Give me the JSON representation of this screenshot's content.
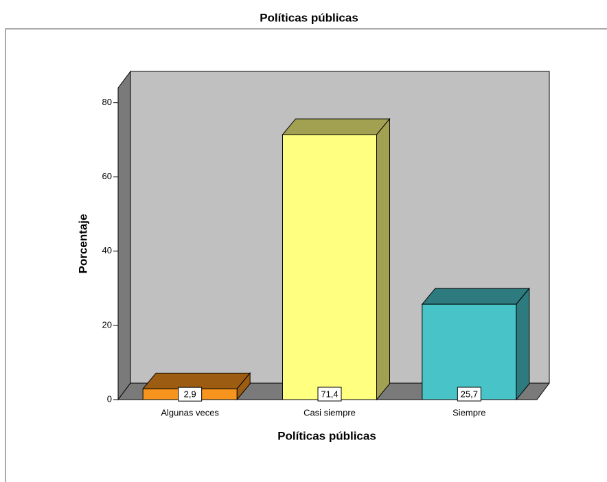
{
  "chart_data": {
    "type": "bar3d",
    "title": "Políticas públicas",
    "x_label": "Políticas públicas",
    "y_label": "Porcentaje",
    "categories": [
      "Algunas veces",
      "Casi siempre",
      "Siempre"
    ],
    "values": [
      2.9,
      71.4,
      25.7
    ],
    "value_labels": [
      "2,9",
      "71,4",
      "25,7"
    ],
    "colors": [
      "#f7941d",
      "#ffff80",
      "#48c4c8"
    ],
    "ylim": [
      0,
      84
    ],
    "yticks": [
      0,
      20,
      40,
      60,
      80
    ]
  }
}
